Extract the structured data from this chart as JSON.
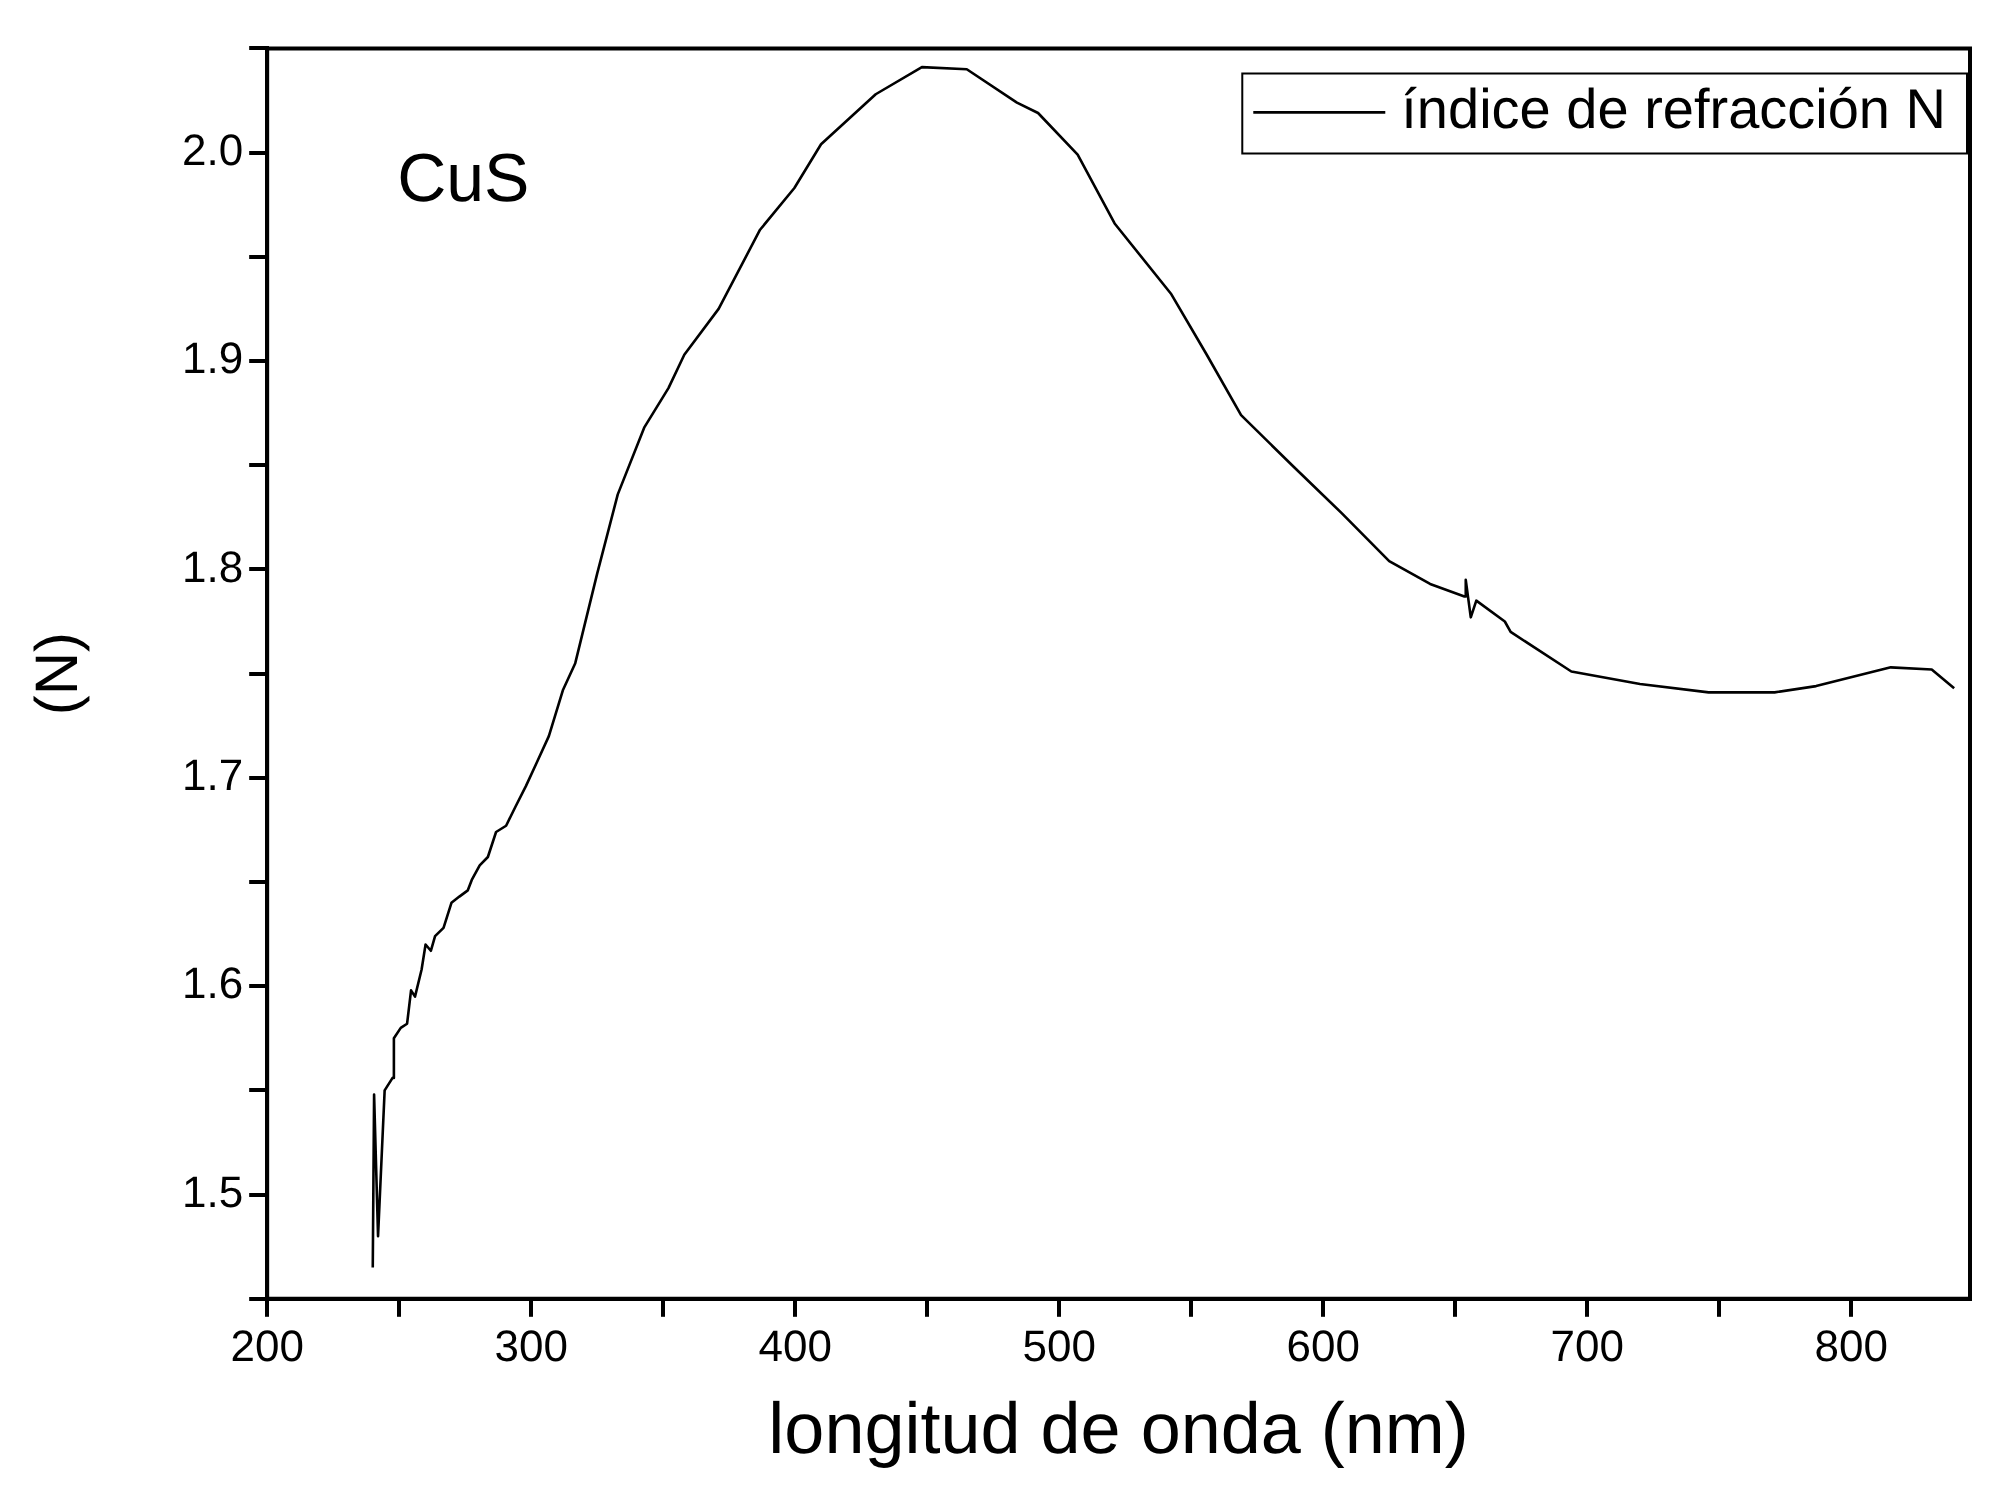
{
  "chart_data": {
    "type": "line",
    "xlabel": "longitud de onda (nm)",
    "ylabel": "(N)",
    "annotations": [
      "CuS"
    ],
    "legend": "top right",
    "grid": false,
    "marker": "none",
    "line_style": "solid",
    "xlim": [
      200,
      845
    ],
    "xticks": [
      200,
      {
        "value": 250,
        "label": null
      },
      300,
      {
        "value": 350,
        "label": null
      },
      400,
      {
        "value": 450,
        "label": null
      },
      500,
      {
        "value": 550,
        "label": null
      },
      600,
      {
        "value": 650,
        "label": null
      },
      700,
      {
        "value": 750,
        "label": null
      },
      800
    ],
    "ylim": [
      1.45,
      2.05
    ],
    "yticks": [
      {
        "value": 1.45,
        "label": null
      },
      1.5,
      {
        "value": 1.55,
        "label": null
      },
      1.6,
      {
        "value": 1.65,
        "label": null
      },
      1.7,
      {
        "value": 1.75,
        "label": null
      },
      1.8,
      {
        "value": 1.85,
        "label": null
      },
      1.9,
      {
        "value": 1.95,
        "label": null
      },
      {
        "value": 2,
        "label": "2.0"
      },
      {
        "value": 2.05,
        "label": null
      }
    ],
    "series": [
      {
        "name": "índice de refracción N",
        "color": "#000000",
        "x": [
          240,
          240.5,
          242,
          244.5,
          247.5,
          248,
          250.6,
          253,
          254.5,
          256,
          258.5,
          260,
          262,
          263.6,
          266.8,
          269.8,
          272.8,
          276,
          277.5,
          280.5,
          283.6,
          286.7,
          290.5,
          294,
          298,
          302,
          306.7,
          312,
          316.7,
          325,
          332.8,
          342.8,
          352,
          358,
          371,
          386.7,
          399.7,
          409.8,
          430.5,
          448,
          465,
          484,
          492,
          507,
          521,
          542.5,
          555.9,
          568.9,
          589,
          607,
          625,
          640.5,
          653.5,
          654,
          655.9,
          658,
          668.8,
          671,
          694,
          720,
          746,
          771,
          786.7,
          815,
          830.5,
          839
        ],
        "values": [
          1.465,
          1.548,
          1.48,
          1.55,
          1.556,
          1.575,
          1.58,
          1.582,
          1.598,
          1.595,
          1.608,
          1.62,
          1.617,
          1.624,
          1.628,
          1.64,
          1.643,
          1.646,
          1.651,
          1.658,
          1.662,
          1.674,
          1.677,
          1.686,
          1.696,
          1.707,
          1.72,
          1.742,
          1.755,
          1.798,
          1.836,
          1.868,
          1.887,
          1.903,
          1.925,
          1.963,
          1.983,
          2.004,
          2.028,
          2.041,
          2.04,
          2.024,
          2.019,
          1.999,
          1.966,
          1.932,
          1.903,
          1.874,
          1.849,
          1.827,
          1.804,
          1.793,
          1.787,
          1.795,
          1.777,
          1.785,
          1.775,
          1.77,
          1.751,
          1.745,
          1.741,
          1.741,
          1.744,
          1.753,
          1.752,
          1.743
        ]
      }
    ]
  }
}
